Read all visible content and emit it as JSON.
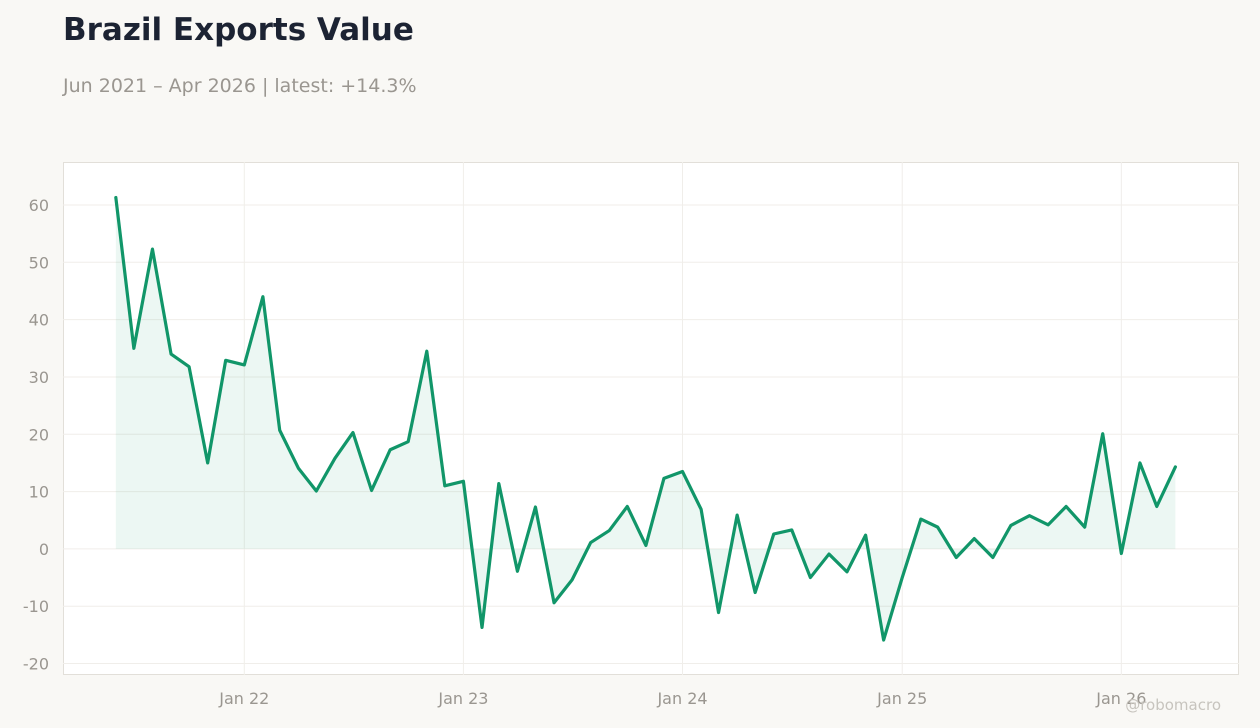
{
  "chart_data": {
    "type": "area",
    "title": "Brazil Exports Value",
    "subtitle": "Jun 2021 – Apr 2026 | latest: +14.3%",
    "xlabel": "",
    "ylabel": "",
    "ylim": [
      -22,
      67.5
    ],
    "xlim": [
      "2021-03-05",
      "2026-07-16"
    ],
    "yticks": [
      -20,
      -10,
      0,
      10,
      20,
      30,
      40,
      50,
      60
    ],
    "xticks": [
      {
        "date": "2022-01-01",
        "label": "Jan 22"
      },
      {
        "date": "2023-01-01",
        "label": "Jan 23"
      },
      {
        "date": "2024-01-01",
        "label": "Jan 24"
      },
      {
        "date": "2025-01-01",
        "label": "Jan 25"
      },
      {
        "date": "2026-01-01",
        "label": "Jan 26"
      }
    ],
    "grid": true,
    "line_color": "#119669",
    "fill_color": "#119669",
    "series": [
      {
        "x": [
          "2021-06",
          "2021-07",
          "2021-08",
          "2021-09",
          "2021-10",
          "2021-11",
          "2021-12",
          "2022-01",
          "2022-02",
          "2022-03",
          "2022-04",
          "2022-05",
          "2022-06",
          "2022-07",
          "2022-08",
          "2022-09",
          "2022-10",
          "2022-11",
          "2022-12",
          "2023-01",
          "2023-02",
          "2023-03",
          "2023-04",
          "2023-05",
          "2023-06",
          "2023-07",
          "2023-08",
          "2023-09",
          "2023-10",
          "2023-11",
          "2023-12",
          "2024-01",
          "2024-02",
          "2024-03",
          "2024-04",
          "2024-05",
          "2024-06",
          "2024-07",
          "2024-08",
          "2024-09",
          "2024-10",
          "2024-11",
          "2024-12",
          "2025-01",
          "2025-02",
          "2025-03",
          "2025-04",
          "2025-05",
          "2025-06",
          "2025-07",
          "2025-08",
          "2025-09",
          "2025-10",
          "2025-11",
          "2025-12",
          "2026-01",
          "2026-02",
          "2026-03",
          "2026-04"
        ],
        "values": [
          61.3,
          35.0,
          52.3,
          34.0,
          31.8,
          15.0,
          32.9,
          32.1,
          44.0,
          20.7,
          14.1,
          10.1,
          15.8,
          20.3,
          10.2,
          17.3,
          18.7,
          34.5,
          11.0,
          11.8,
          -13.7,
          11.4,
          -3.9,
          7.3,
          -9.4,
          -5.4,
          1.1,
          3.2,
          7.4,
          0.6,
          12.3,
          13.5,
          6.9,
          -11.1,
          5.9,
          -7.6,
          2.6,
          3.3,
          -5.0,
          -0.9,
          -4.0,
          2.4,
          -15.9,
          -5.0,
          5.2,
          3.8,
          -1.5,
          1.8,
          -1.5,
          4.1,
          5.8,
          4.2,
          7.4,
          3.8,
          20.1,
          -0.8,
          15.0,
          7.4,
          14.3
        ]
      }
    ]
  },
  "watermark": "@robomacro"
}
